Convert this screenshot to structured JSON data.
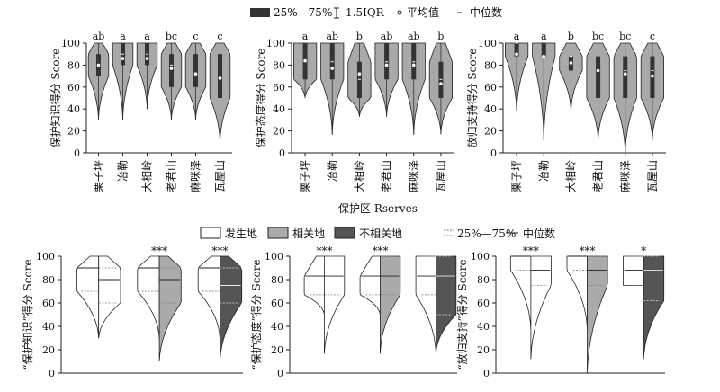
{
  "legend_top": {
    "box_label": "25%—75%",
    "whisker_label": "1.5IQR",
    "mean_label": "平均值",
    "median_label": "中位数"
  },
  "legend_bottom": {
    "items": [
      {
        "label": "发生地",
        "color": "#ffffff"
      },
      {
        "label": "相关地",
        "color": "#aaaaaa"
      },
      {
        "label": "不相关地",
        "color": "#555555"
      }
    ],
    "quartile_label": "25%—75%",
    "median_label": "中位数"
  },
  "shared_xlabel": "保护区 Rserves",
  "chart_data": [
    {
      "type": "violin",
      "ylabel": "保护知识得分 Score",
      "ylim": [
        0,
        100
      ],
      "yticks": [
        0,
        20,
        40,
        60,
        80,
        100
      ],
      "categories": [
        "栗子坪",
        "冶勒",
        "大相岭",
        "老君山",
        "麻咪泽",
        "瓦屋山"
      ],
      "letters": [
        "ab",
        "a",
        "a",
        "bc",
        "c",
        "c"
      ],
      "min": [
        30,
        30,
        40,
        30,
        30,
        10
      ],
      "max": [
        100,
        100,
        100,
        100,
        100,
        100
      ],
      "q1": [
        70,
        80,
        80,
        60,
        60,
        50
      ],
      "q3": [
        90,
        100,
        100,
        90,
        90,
        90
      ],
      "median": [
        80,
        90,
        90,
        80,
        70,
        70
      ],
      "mean": [
        80,
        86,
        86,
        77,
        72,
        68
      ]
    },
    {
      "type": "violin",
      "ylabel": "保护态度得分 Score",
      "ylim": [
        0,
        100
      ],
      "yticks": [
        0,
        20,
        40,
        60,
        80,
        100
      ],
      "categories": [
        "栗子坪",
        "冶勒",
        "大相岭",
        "老君山",
        "麻咪泽",
        "瓦屋山"
      ],
      "letters": [
        "a",
        "ab",
        "b",
        "ab",
        "ab",
        "b"
      ],
      "min": [
        50,
        17,
        33,
        33,
        17,
        17
      ],
      "max": [
        100,
        100,
        100,
        100,
        100,
        100
      ],
      "q1": [
        67,
        67,
        50,
        67,
        67,
        50
      ],
      "q3": [
        100,
        100,
        83,
        100,
        100,
        83
      ],
      "median": [
        83,
        83,
        67,
        83,
        83,
        67
      ],
      "mean": [
        84,
        77,
        72,
        80,
        80,
        63
      ]
    },
    {
      "type": "violin",
      "ylabel": "放归支持得分 Score",
      "ylim": [
        0,
        100
      ],
      "yticks": [
        0,
        20,
        40,
        60,
        80,
        100
      ],
      "categories": [
        "栗子坪",
        "冶勒",
        "大相岭",
        "老君山",
        "麻咪泽",
        "瓦屋山"
      ],
      "letters": [
        "a",
        "a",
        "b",
        "bc",
        "bc",
        "c"
      ],
      "min": [
        38,
        12,
        38,
        12,
        0,
        12
      ],
      "max": [
        100,
        100,
        100,
        100,
        100,
        100
      ],
      "q1": [
        88,
        88,
        75,
        50,
        50,
        50
      ],
      "q3": [
        100,
        100,
        88,
        88,
        88,
        88
      ],
      "median": [
        100,
        88,
        88,
        75,
        75,
        75
      ],
      "mean": [
        90,
        88,
        82,
        75,
        72,
        70
      ]
    },
    {
      "type": "split-violin",
      "ylabel": "“保护知识”得分 Score",
      "ylim": [
        0,
        100
      ],
      "yticks": [
        0,
        20,
        40,
        60,
        80,
        100
      ],
      "groups": [
        "发生地",
        "相关地",
        "不相关地"
      ],
      "significance": [
        "",
        "***",
        "***"
      ],
      "left": {
        "min": [
          30,
          30,
          30
        ],
        "q1": [
          70,
          70,
          70
        ],
        "median": [
          90,
          90,
          90
        ],
        "q3": [
          90,
          90,
          90
        ]
      },
      "right": {
        "min": [
          30,
          10,
          10
        ],
        "q1": [
          60,
          60,
          60
        ],
        "median": [
          80,
          80,
          75
        ],
        "q3": [
          90,
          90,
          90
        ]
      }
    },
    {
      "type": "split-violin",
      "ylabel": "“保护态度”得分 Score",
      "ylim": [
        0,
        100
      ],
      "yticks": [
        0,
        20,
        40,
        60,
        80,
        100
      ],
      "groups": [
        "发生地",
        "相关地",
        "不相关地"
      ],
      "significance": [
        "***",
        "***",
        ""
      ],
      "left": {
        "min": [
          50,
          50,
          17
        ],
        "q1": [
          67,
          67,
          67
        ],
        "median": [
          83,
          83,
          83
        ],
        "q3": [
          83,
          83,
          100
        ]
      },
      "right": {
        "min": [
          17,
          17,
          17
        ],
        "q1": [
          67,
          67,
          50
        ],
        "median": [
          83,
          83,
          83
        ],
        "q3": [
          100,
          100,
          100
        ]
      }
    },
    {
      "type": "split-violin",
      "ylabel": "“放归支持”得分 Score",
      "ylim": [
        0,
        100
      ],
      "yticks": [
        0,
        20,
        40,
        60,
        80,
        100
      ],
      "groups": [
        "发生地",
        "相关地",
        "不相关地"
      ],
      "significance": [
        "***",
        "***",
        "*"
      ],
      "left": {
        "min": [
          38,
          38,
          75
        ],
        "q1": [
          88,
          88,
          75
        ],
        "median": [
          100,
          100,
          88
        ],
        "q3": [
          100,
          100,
          100
        ]
      },
      "right": {
        "min": [
          12,
          0,
          12
        ],
        "q1": [
          75,
          75,
          62
        ],
        "median": [
          88,
          88,
          88
        ],
        "q3": [
          100,
          100,
          100
        ]
      }
    }
  ]
}
